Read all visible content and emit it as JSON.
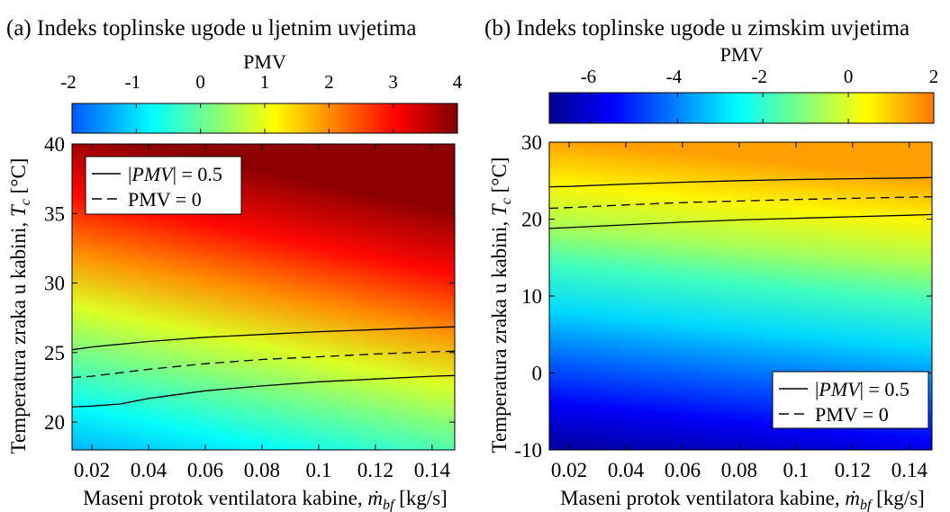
{
  "chart_data": [
    {
      "type": "heatmap",
      "panel_label": "(a)",
      "title": "Indeks toplinske ugode u ljetnim uvjetima",
      "xlabel_prefix": "Maseni protok ventilatora kabine, ",
      "xlabel_var": "ṁ",
      "xlabel_sub": "bf",
      "xlabel_unit": " [kg/s]",
      "ylabel_prefix": "Temperatura zraka u kabini, ",
      "ylabel_var": "T",
      "ylabel_sub": "c",
      "ylabel_unit": " [°C]",
      "xlim": [
        0.013,
        0.148
      ],
      "ylim": [
        18,
        40
      ],
      "xticks": [
        0.02,
        0.04,
        0.06,
        0.08,
        0.1,
        0.12,
        0.14
      ],
      "xtick_labels": [
        "0.02",
        "0.04",
        "0.06",
        "0.08",
        "0.1",
        "0.12",
        "0.14"
      ],
      "yticks": [
        20,
        25,
        30,
        35,
        40
      ],
      "ytick_labels": [
        "20",
        "25",
        "30",
        "35",
        "40"
      ],
      "colorbar": {
        "label": "PMV",
        "range": [
          -2,
          4
        ],
        "ticks": [
          -2,
          -1,
          0,
          1,
          2,
          3,
          4
        ],
        "tick_labels": [
          "-2",
          "-1",
          "0",
          "1",
          "2",
          "3",
          "4"
        ]
      },
      "legend_position": "top-left",
      "legend": [
        {
          "style": "solid",
          "label": "|PMV| = 0.5",
          "label_pre": "|",
          "label_var": "PMV",
          "label_post": "| = 0.5"
        },
        {
          "style": "dashed",
          "label": "PMV = 0"
        }
      ],
      "contours": [
        {
          "name": "PMV = 0.5",
          "style": "solid",
          "x": [
            0.013,
            0.02,
            0.04,
            0.06,
            0.08,
            0.1,
            0.12,
            0.14,
            0.148
          ],
          "y": [
            25.2,
            25.4,
            25.8,
            26.1,
            26.3,
            26.5,
            26.65,
            26.8,
            26.85
          ]
        },
        {
          "name": "PMV = 0",
          "style": "dashed",
          "x": [
            0.013,
            0.02,
            0.04,
            0.06,
            0.08,
            0.1,
            0.12,
            0.14,
            0.148
          ],
          "y": [
            23.2,
            23.3,
            23.8,
            24.2,
            24.5,
            24.7,
            24.9,
            25.05,
            25.1
          ]
        },
        {
          "name": "PMV = -0.5",
          "style": "solid",
          "x": [
            0.013,
            0.02,
            0.03,
            0.04,
            0.06,
            0.08,
            0.1,
            0.12,
            0.14,
            0.148
          ],
          "y": [
            21.1,
            21.15,
            21.3,
            21.7,
            22.25,
            22.6,
            22.9,
            23.1,
            23.3,
            23.35
          ]
        }
      ]
    },
    {
      "type": "heatmap",
      "panel_label": "(b)",
      "title": "Indeks toplinske ugode u zimskim uvjetima",
      "xlabel_prefix": "Maseni protok ventilatora kabine, ",
      "xlabel_var": "ṁ",
      "xlabel_sub": "bf",
      "xlabel_unit": " [kg/s]",
      "ylabel_prefix": "Temperatura zraka u kabini, ",
      "ylabel_var": "T",
      "ylabel_sub": "c",
      "ylabel_unit": " [°C]",
      "xlim": [
        0.013,
        0.148
      ],
      "ylim": [
        -10,
        30
      ],
      "xticks": [
        0.02,
        0.04,
        0.06,
        0.08,
        0.1,
        0.12,
        0.14
      ],
      "xtick_labels": [
        "0.02",
        "0.04",
        "0.06",
        "0.08",
        "0.1",
        "0.12",
        "0.14"
      ],
      "yticks": [
        -10,
        0,
        10,
        20,
        30
      ],
      "ytick_labels": [
        "-10",
        "0",
        "10",
        "20",
        "30"
      ],
      "colorbar": {
        "label": "PMV",
        "range": [
          -7,
          2
        ],
        "ticks": [
          -6,
          -4,
          -2,
          0,
          2
        ],
        "tick_labels": [
          "-6",
          "-4",
          "-2",
          "0",
          "2"
        ]
      },
      "legend_position": "bottom-right",
      "legend": [
        {
          "style": "solid",
          "label": "|PMV| = 0.5",
          "label_pre": "|",
          "label_var": "PMV",
          "label_post": "| = 0.5"
        },
        {
          "style": "dashed",
          "label": "PMV = 0"
        }
      ],
      "contours": [
        {
          "name": "PMV = 0.5",
          "style": "solid",
          "x": [
            0.013,
            0.02,
            0.04,
            0.06,
            0.08,
            0.1,
            0.12,
            0.14,
            0.148
          ],
          "y": [
            24.2,
            24.25,
            24.55,
            24.8,
            25.0,
            25.15,
            25.25,
            25.35,
            25.4
          ]
        },
        {
          "name": "PMV = 0",
          "style": "dashed",
          "x": [
            0.013,
            0.02,
            0.04,
            0.06,
            0.08,
            0.1,
            0.12,
            0.14,
            0.148
          ],
          "y": [
            21.4,
            21.5,
            21.85,
            22.15,
            22.35,
            22.55,
            22.7,
            22.85,
            22.9
          ]
        },
        {
          "name": "PMV = -0.5",
          "style": "solid",
          "x": [
            0.013,
            0.02,
            0.04,
            0.06,
            0.08,
            0.1,
            0.12,
            0.14,
            0.148
          ],
          "y": [
            18.8,
            18.9,
            19.25,
            19.6,
            19.9,
            20.1,
            20.3,
            20.5,
            20.6
          ]
        }
      ]
    }
  ]
}
